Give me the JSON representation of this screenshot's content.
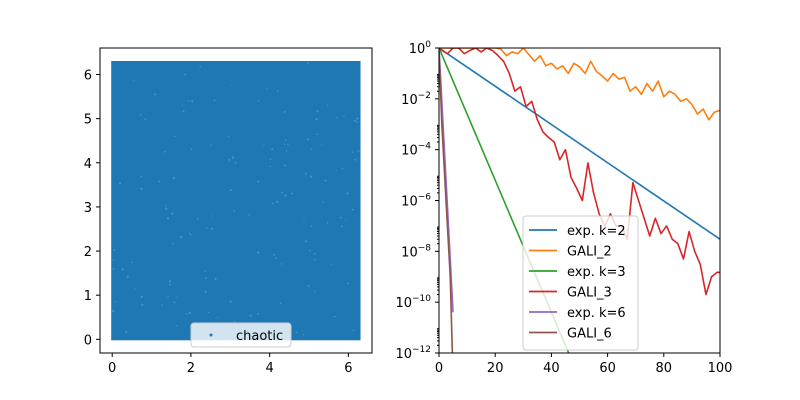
{
  "chart_data": [
    {
      "type": "scatter",
      "title": "",
      "xlabel": "",
      "ylabel": "",
      "xlim": [
        -0.31,
        6.6
      ],
      "ylim": [
        -0.31,
        6.6
      ],
      "x_ticks": [
        0,
        2,
        4,
        6
      ],
      "y_ticks": [
        0,
        1,
        2,
        3,
        4,
        5,
        6
      ],
      "x_tick_labels": [
        "0",
        "2",
        "4",
        "6"
      ],
      "y_tick_labels": [
        "0",
        "1",
        "2",
        "3",
        "4",
        "5",
        "6"
      ],
      "grid": false,
      "legend_position": "bottom-center",
      "series": [
        {
          "name": "chaotic",
          "color": "#1f77b4",
          "marker": "point",
          "x_range": [
            0,
            6.283
          ],
          "y_range": [
            0,
            6.283
          ],
          "distribution": "uniformly fills the square [0, 2π] × [0, 2π]"
        }
      ]
    },
    {
      "type": "line",
      "title": "",
      "xlabel": "",
      "ylabel": "",
      "xlim": [
        0,
        100
      ],
      "ylim": [
        1e-12,
        1
      ],
      "yscale": "log",
      "x_ticks": [
        0,
        20,
        40,
        60,
        80,
        100
      ],
      "x_tick_labels": [
        "0",
        "20",
        "40",
        "60",
        "80",
        "100"
      ],
      "y_ticks": [
        1e-12,
        1e-10,
        1e-08,
        1e-06,
        0.0001,
        0.01,
        1
      ],
      "y_tick_labels": [
        {
          "base": "10",
          "exp": "−12"
        },
        {
          "base": "10",
          "exp": "−10"
        },
        {
          "base": "10",
          "exp": "−8"
        },
        {
          "base": "10",
          "exp": "−6"
        },
        {
          "base": "10",
          "exp": "−4"
        },
        {
          "base": "10",
          "exp": "−2"
        },
        {
          "base": "10",
          "exp": "0"
        }
      ],
      "grid": false,
      "legend_position": "lower-center",
      "series": [
        {
          "name": "exp. k=2",
          "color": "#1f77b4",
          "x": [
            0,
            100
          ],
          "y": [
            1,
            3e-08
          ]
        },
        {
          "name": "GALI_2",
          "color": "#ff7f0e",
          "x": [
            0,
            2,
            4,
            6,
            8,
            10,
            12,
            14,
            16,
            18,
            20,
            22,
            24,
            26,
            28,
            30,
            32,
            34,
            36,
            38,
            40,
            42,
            44,
            46,
            48,
            50,
            52,
            54,
            56,
            58,
            60,
            62,
            64,
            66,
            68,
            70,
            72,
            74,
            76,
            78,
            80,
            82,
            84,
            86,
            88,
            90,
            92,
            94,
            96,
            98,
            100
          ],
          "y": [
            1,
            1,
            1,
            1,
            1,
            1,
            1,
            1,
            1,
            1,
            1,
            0.9,
            0.5,
            0.7,
            0.6,
            1,
            0.55,
            0.3,
            0.5,
            0.2,
            0.25,
            0.15,
            0.2,
            0.1,
            0.25,
            0.18,
            0.1,
            0.3,
            0.12,
            0.08,
            0.05,
            0.1,
            0.06,
            0.07,
            0.02,
            0.03,
            0.015,
            0.04,
            0.02,
            0.05,
            0.012,
            0.02,
            0.015,
            0.008,
            0.01,
            0.006,
            0.0025,
            0.004,
            0.0015,
            0.003,
            0.0035
          ]
        },
        {
          "name": "exp. k=3",
          "color": "#2ca02c",
          "x": [
            0,
            50
          ],
          "y": [
            1,
            1e-13
          ]
        },
        {
          "name": "GALI_3",
          "color": "#d62728",
          "x": [
            0,
            1,
            3,
            5,
            7,
            9,
            11,
            13,
            15,
            17,
            19,
            21,
            23,
            25,
            27,
            29,
            31,
            33,
            35,
            37,
            39,
            41,
            43,
            45,
            47,
            49,
            51,
            53,
            55,
            57,
            59,
            61,
            63,
            65,
            67,
            69,
            71,
            73,
            75,
            77,
            79,
            81,
            83,
            85,
            87,
            89,
            91,
            93,
            95,
            97,
            99,
            100
          ],
          "y": [
            1,
            0.8,
            0.6,
            1,
            1,
            0.6,
            0.8,
            1,
            0.7,
            1,
            0.8,
            0.5,
            0.3,
            0.1,
            0.02,
            0.03,
            0.005,
            0.008,
            0.0015,
            0.0005,
            0.0003,
            0.0002,
            4e-05,
            0.0001,
            8e-06,
            3e-06,
            1e-06,
            3e-05,
            2e-06,
            3e-07,
            1e-07,
            3e-07,
            1e-07,
            1e-07,
            3e-08,
            5e-06,
            1e-06,
            2e-07,
            4e-08,
            2e-07,
            5e-08,
            1e-07,
            3e-08,
            2e-08,
            5e-09,
            6e-08,
            1e-08,
            3e-09,
            2e-10,
            1e-09,
            1.5e-09,
            1.5e-09
          ]
        },
        {
          "name": "exp. k=6",
          "color": "#9467bd",
          "x": [
            0,
            5
          ],
          "y": [
            1,
            4e-11
          ]
        },
        {
          "name": "GALI_6",
          "color": "#8c564b",
          "x": [
            0,
            1,
            2,
            3,
            4,
            5
          ],
          "y": [
            1,
            0.001,
            1e-05,
            1e-07,
            1e-09,
            1e-13
          ]
        }
      ]
    }
  ]
}
